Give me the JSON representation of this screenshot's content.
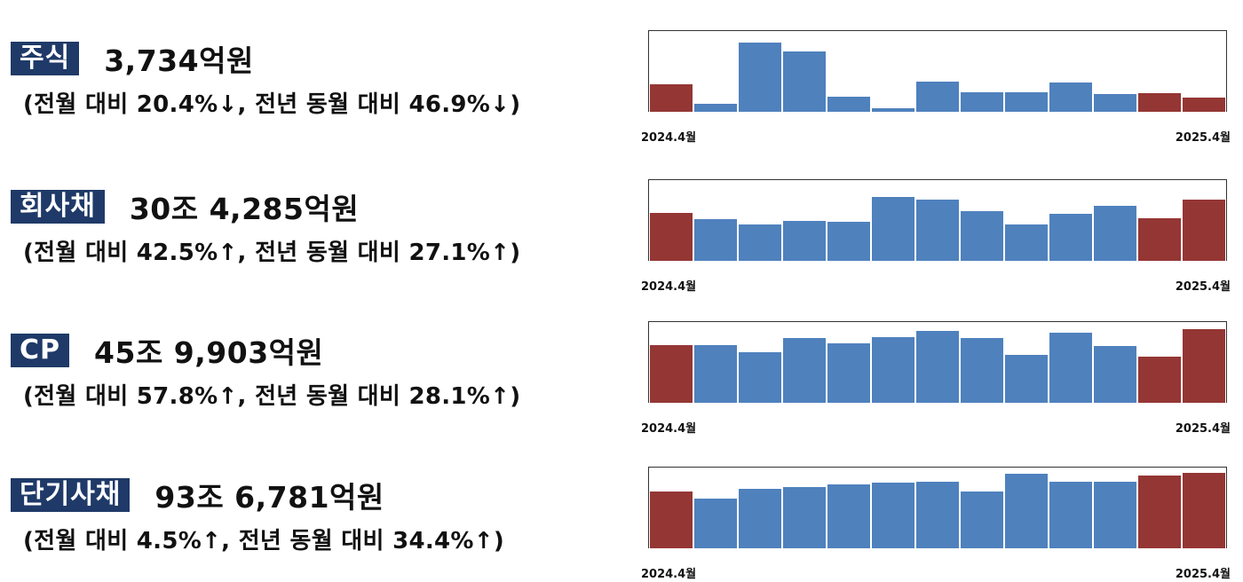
{
  "colors": {
    "badge_bg": "#1f3a68",
    "bar_normal": "#4f81bd",
    "bar_highlight": "#943634"
  },
  "sections": [
    {
      "label": "주식",
      "amount": "3,734억원",
      "change": "(전월 대비 20.4%↓, 전년 동월 대비 46.9%↓)",
      "x_start": "2024.4월",
      "x_end": "2025.4월"
    },
    {
      "label": "회사채",
      "amount": "30조 4,285억원",
      "change": "(전월 대비 42.5%↑, 전년 동월 대비 27.1%↑)",
      "x_start": "2024.4월",
      "x_end": "2025.4월"
    },
    {
      "label": "CP",
      "amount": "45조 9,903억원",
      "change": "(전월 대비 57.8%↑, 전년 동월 대비 28.1%↑)",
      "x_start": "2024.4월",
      "x_end": "2025.4월"
    },
    {
      "label": "단기사채",
      "amount": "93조 6,781억원",
      "change": "(전월 대비 4.5%↑, 전년 동월 대비 34.4%↑)",
      "x_start": "2024.4월",
      "x_end": "2025.4월"
    }
  ],
  "chart_data": [
    {
      "type": "bar",
      "title": "주식 3,734억원",
      "categories": [
        "2024.4",
        "2024.5",
        "2024.6",
        "2024.7",
        "2024.8",
        "2024.9",
        "2024.10",
        "2024.11",
        "2024.12",
        "2025.1",
        "2025.2",
        "2025.3",
        "2025.4"
      ],
      "values": [
        31,
        9,
        78,
        68,
        17,
        4,
        34,
        22,
        22,
        33,
        20,
        21,
        16
      ],
      "highlighted_indices": [
        0,
        11,
        12
      ],
      "value_scale": "relative height (0-90, frame top = 90); no y-axis shown",
      "xlabel": "",
      "ylabel": "",
      "x_tick_labels": [
        "2024.4월",
        "2025.4월"
      ],
      "grid": false,
      "legend": null
    },
    {
      "type": "bar",
      "title": "회사채 30조 4,285억원",
      "categories": [
        "2024.4",
        "2024.5",
        "2024.6",
        "2024.7",
        "2024.8",
        "2024.9",
        "2024.10",
        "2024.11",
        "2024.12",
        "2025.1",
        "2025.2",
        "2025.3",
        "2025.4"
      ],
      "values": [
        54,
        47,
        41,
        45,
        44,
        72,
        69,
        56,
        41,
        53,
        62,
        48,
        69
      ],
      "highlighted_indices": [
        0,
        11,
        12
      ],
      "value_scale": "relative height (0-90, frame top = 90); no y-axis shown",
      "xlabel": "",
      "ylabel": "",
      "x_tick_labels": [
        "2024.4월",
        "2025.4월"
      ],
      "grid": false,
      "legend": null
    },
    {
      "type": "bar",
      "title": "CP 45조 9,903억원",
      "categories": [
        "2024.4",
        "2024.5",
        "2024.6",
        "2024.7",
        "2024.8",
        "2024.9",
        "2024.10",
        "2024.11",
        "2024.12",
        "2025.1",
        "2025.2",
        "2025.3",
        "2025.4"
      ],
      "values": [
        65,
        65,
        57,
        73,
        67,
        74,
        81,
        73,
        54,
        79,
        64,
        52,
        83
      ],
      "highlighted_indices": [
        0,
        11,
        12
      ],
      "value_scale": "relative height (0-90, frame top = 90); no y-axis shown",
      "xlabel": "",
      "ylabel": "",
      "x_tick_labels": [
        "2024.4월",
        "2025.4월"
      ],
      "grid": false,
      "legend": null
    },
    {
      "type": "bar",
      "title": "단기사채 93조 6,781억원",
      "categories": [
        "2024.4",
        "2024.5",
        "2024.6",
        "2024.7",
        "2024.8",
        "2024.9",
        "2024.10",
        "2024.11",
        "2024.12",
        "2025.1",
        "2025.2",
        "2025.3",
        "2025.4"
      ],
      "values": [
        64,
        56,
        67,
        69,
        72,
        74,
        75,
        64,
        84,
        75,
        75,
        82,
        85
      ],
      "highlighted_indices": [
        0,
        11,
        12
      ],
      "value_scale": "relative height (0-90, frame top = 90); no y-axis shown",
      "xlabel": "",
      "ylabel": "",
      "x_tick_labels": [
        "2024.4월",
        "2025.4월"
      ],
      "grid": false,
      "legend": null
    }
  ]
}
